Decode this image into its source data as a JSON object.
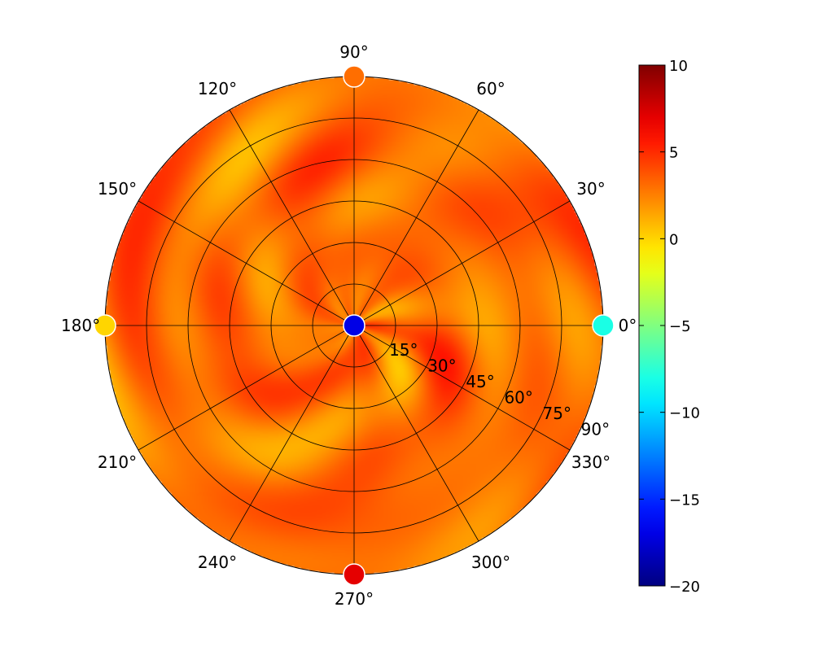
{
  "chart_data": {
    "type": "heatmap",
    "projection": "polar",
    "colormap": "jet",
    "color_range": [
      -20,
      10
    ],
    "colorbar_ticks": [
      "10",
      "5",
      "0",
      "−5",
      "−10",
      "−15",
      "−20"
    ],
    "colorbar_tick_values": [
      10,
      5,
      0,
      -5,
      -10,
      -15,
      -20
    ],
    "angle_ticks": [
      "0°",
      "30°",
      "60°",
      "90°",
      "120°",
      "150°",
      "180°",
      "210°",
      "240°",
      "270°",
      "300°",
      "330°"
    ],
    "angle_tick_values": [
      0,
      30,
      60,
      90,
      120,
      150,
      180,
      210,
      240,
      270,
      300,
      330
    ],
    "radial_ticks": [
      "15°",
      "30°",
      "45°",
      "60°",
      "75°",
      "90°"
    ],
    "radial_tick_values": [
      15,
      30,
      45,
      60,
      75,
      90
    ],
    "radial_range": [
      0,
      90
    ],
    "field_range_estimate": [
      1,
      5
    ],
    "markers": [
      {
        "azimuth": 0,
        "zenith": 0,
        "value": -17
      },
      {
        "azimuth": 0,
        "zenith": 90,
        "value": -8
      },
      {
        "azimuth": 90,
        "zenith": 90,
        "value": 3
      },
      {
        "azimuth": 180,
        "zenith": 90,
        "value": 0
      },
      {
        "azimuth": 270,
        "zenith": 90,
        "value": 7
      }
    ],
    "grid": true
  }
}
